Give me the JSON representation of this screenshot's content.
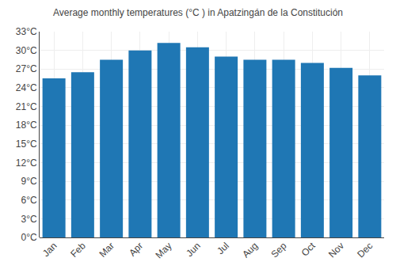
{
  "chart_data": {
    "type": "bar",
    "title": "Average monthly temperatures (°C ) in Apatzingán de la Constitución",
    "categories": [
      "Jan",
      "Feb",
      "Mar",
      "Apr",
      "May",
      "Jun",
      "Jul",
      "Aug",
      "Sep",
      "Oct",
      "Nov",
      "Dec"
    ],
    "values": [
      25.5,
      26.5,
      28.5,
      30.0,
      31.2,
      30.5,
      29.0,
      28.5,
      28.5,
      28.0,
      27.2,
      26.0
    ],
    "ylim": [
      0,
      33
    ],
    "yticks": [
      {
        "value": 0,
        "label": "0°C"
      },
      {
        "value": 3,
        "label": "3°C"
      },
      {
        "value": 6,
        "label": "6°C"
      },
      {
        "value": 9,
        "label": "9°C"
      },
      {
        "value": 12,
        "label": "12°C"
      },
      {
        "value": 15,
        "label": "15°C"
      },
      {
        "value": 18,
        "label": "18°C"
      },
      {
        "value": 21,
        "label": "21°C"
      },
      {
        "value": 24,
        "label": "24°C"
      },
      {
        "value": 27,
        "label": "27°C"
      },
      {
        "value": 30,
        "label": "30°C"
      },
      {
        "value": 33,
        "label": "33°C"
      }
    ],
    "grid": true
  }
}
